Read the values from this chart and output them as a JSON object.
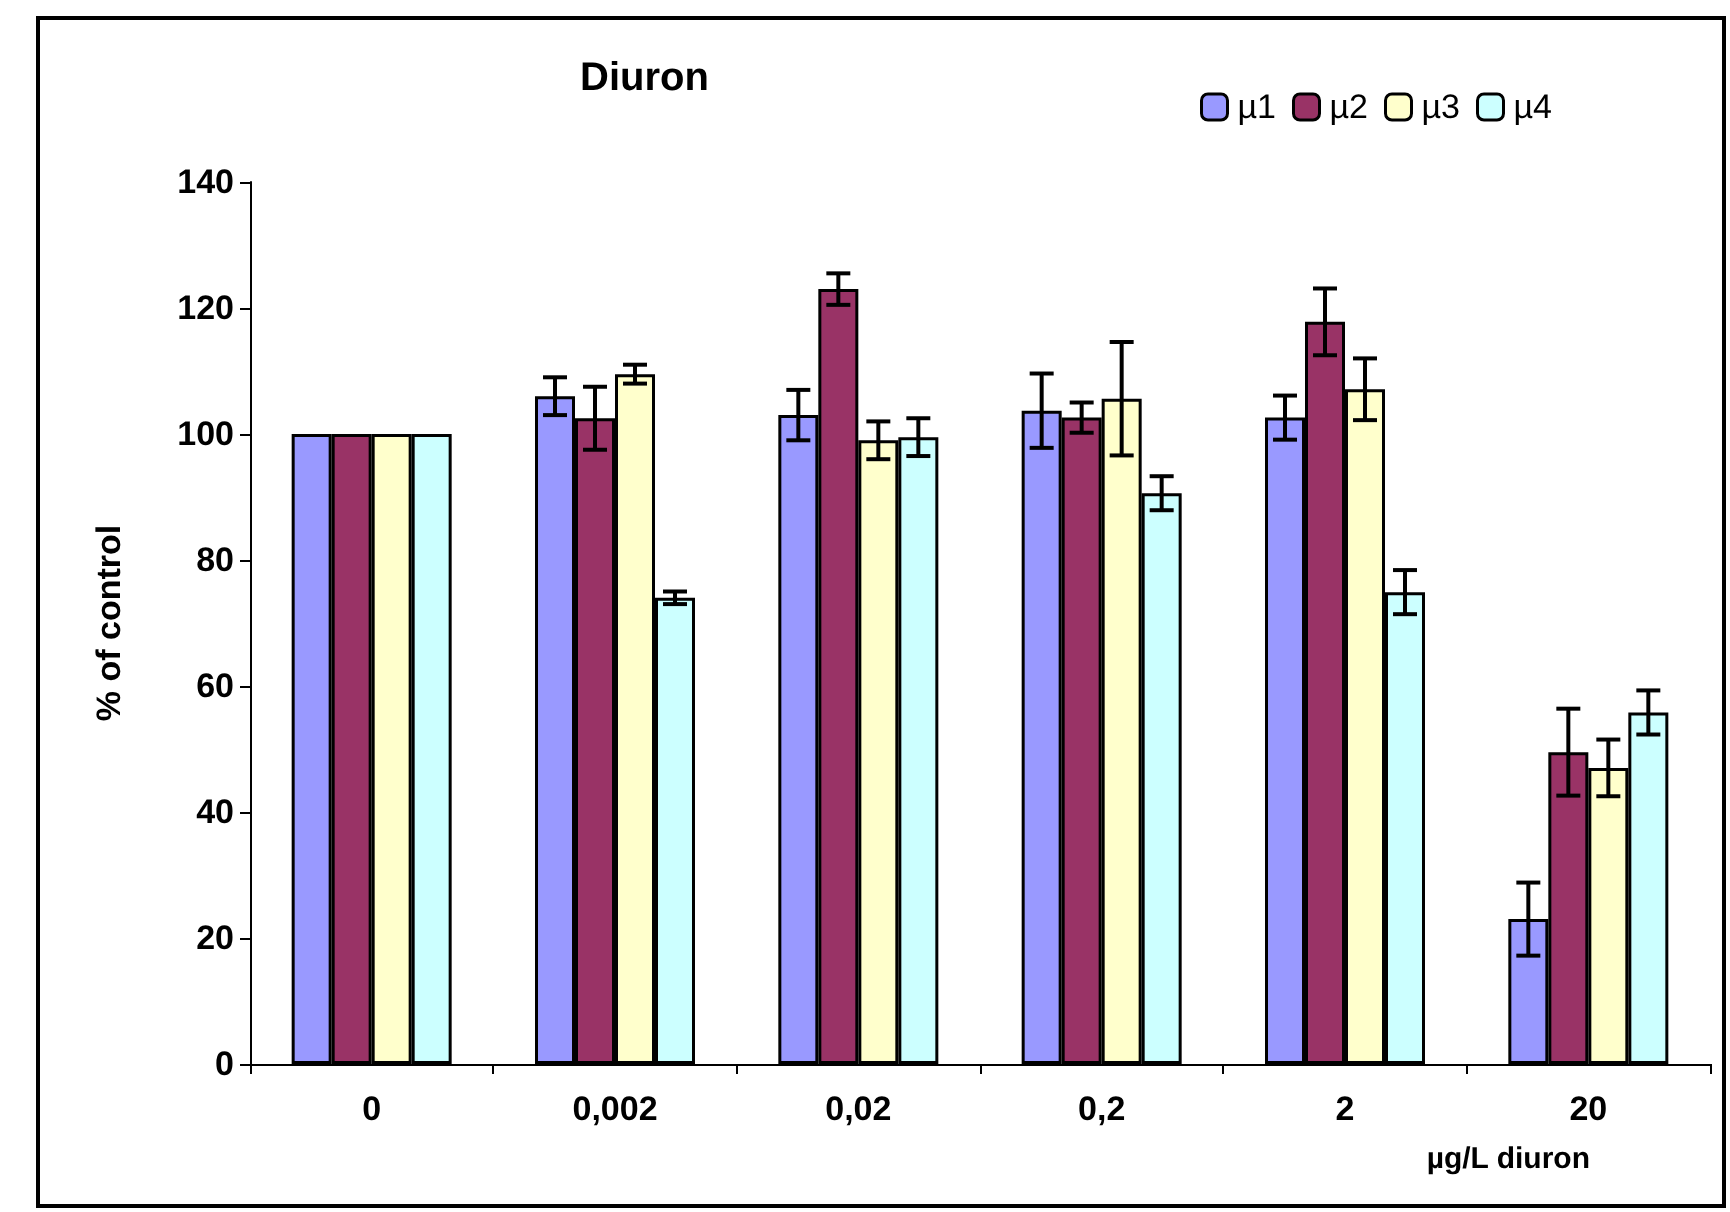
{
  "chart_data": {
    "type": "bar",
    "title": "Diuron",
    "xlabel": "µg/L diuron",
    "ylabel": "% of control",
    "categories": [
      "0",
      "0,002",
      "0,02",
      "0,2",
      "2",
      "20"
    ],
    "series": [
      {
        "name": "µ1",
        "color": "#9999ff",
        "values": [
          100,
          106,
          103,
          103.7,
          102.6,
          23
        ],
        "errors": [
          null,
          3,
          4,
          5.9,
          3.5,
          5.8
        ]
      },
      {
        "name": "µ2",
        "color": "#993366",
        "values": [
          100,
          102.5,
          123,
          102.6,
          117.8,
          49.5
        ],
        "errors": [
          null,
          5,
          2.5,
          2.4,
          5.3,
          6.9
        ]
      },
      {
        "name": "µ3",
        "color": "#ffffcc",
        "values": [
          100,
          109.5,
          99,
          105.6,
          107.1,
          47
        ],
        "errors": [
          null,
          1.5,
          3,
          9,
          4.9,
          4.5
        ]
      },
      {
        "name": "µ4",
        "color": "#ccffff",
        "values": [
          100,
          74,
          99.5,
          90.6,
          74.9,
          55.8
        ],
        "errors": [
          null,
          1,
          3,
          2.7,
          3.5,
          3.5
        ]
      }
    ],
    "ylim": [
      0,
      140
    ],
    "yticks": [
      0,
      20,
      40,
      60,
      80,
      100,
      120,
      140
    ],
    "grid": false,
    "legend": "top right"
  }
}
